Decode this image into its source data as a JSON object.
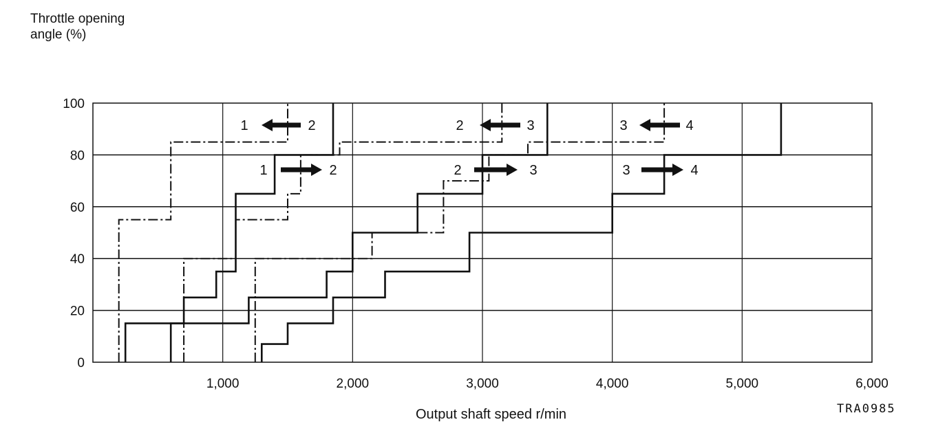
{
  "chart_data": {
    "type": "line",
    "ylabel": "Throttle  opening\nangle (%)",
    "xlabel": "Output shaft speed r/min",
    "figure_code": "TRA0985",
    "xlim": [
      0,
      6000
    ],
    "ylim": [
      0,
      100
    ],
    "x_ticks": [
      {
        "value": 1000,
        "label": "1,000"
      },
      {
        "value": 2000,
        "label": "2,000"
      },
      {
        "value": 3000,
        "label": "3,000"
      },
      {
        "value": 4000,
        "label": "4,000"
      },
      {
        "value": 5000,
        "label": "5,000"
      },
      {
        "value": 6000,
        "label": "6,000"
      }
    ],
    "y_ticks": [
      {
        "value": 0,
        "label": "0"
      },
      {
        "value": 20,
        "label": "20"
      },
      {
        "value": 40,
        "label": "40"
      },
      {
        "value": 60,
        "label": "60"
      },
      {
        "value": 80,
        "label": "80"
      },
      {
        "value": 100,
        "label": "100"
      }
    ],
    "grid": true,
    "series": [
      {
        "style": "solid",
        "points": [
          [
            250,
            0
          ],
          [
            250,
            15
          ],
          [
            700,
            15
          ],
          [
            700,
            25
          ],
          [
            950,
            25
          ],
          [
            950,
            35
          ],
          [
            1100,
            35
          ],
          [
            1100,
            65
          ],
          [
            1400,
            65
          ],
          [
            1400,
            80
          ],
          [
            1850,
            80
          ],
          [
            1850,
            100
          ]
        ]
      },
      {
        "style": "solid",
        "points": [
          [
            600,
            0
          ],
          [
            600,
            15
          ],
          [
            1200,
            15
          ],
          [
            1200,
            25
          ],
          [
            1800,
            25
          ],
          [
            1800,
            35
          ],
          [
            2000,
            35
          ],
          [
            2000,
            50
          ],
          [
            2500,
            50
          ],
          [
            2500,
            65
          ],
          [
            3000,
            65
          ],
          [
            3000,
            80
          ],
          [
            3500,
            80
          ],
          [
            3500,
            100
          ]
        ]
      },
      {
        "style": "solid",
        "points": [
          [
            1300,
            0
          ],
          [
            1300,
            7
          ],
          [
            1500,
            7
          ],
          [
            1500,
            15
          ],
          [
            1850,
            15
          ],
          [
            1850,
            25
          ],
          [
            2250,
            25
          ],
          [
            2250,
            35
          ],
          [
            2900,
            35
          ],
          [
            2900,
            50
          ],
          [
            4000,
            50
          ],
          [
            4000,
            65
          ],
          [
            4400,
            65
          ],
          [
            4400,
            80
          ],
          [
            5300,
            80
          ],
          [
            5300,
            100
          ]
        ]
      },
      {
        "style": "dashed",
        "points": [
          [
            200,
            0
          ],
          [
            200,
            55
          ],
          [
            600,
            55
          ],
          [
            600,
            85
          ],
          [
            1500,
            85
          ],
          [
            1500,
            100
          ]
        ]
      },
      {
        "style": "dashed",
        "points": [
          [
            700,
            0
          ],
          [
            700,
            40
          ],
          [
            1100,
            40
          ],
          [
            1100,
            55
          ],
          [
            1500,
            55
          ],
          [
            1500,
            65
          ],
          [
            1600,
            65
          ],
          [
            1600,
            80
          ],
          [
            1900,
            80
          ],
          [
            1900,
            85
          ],
          [
            3150,
            85
          ],
          [
            3150,
            100
          ]
        ]
      },
      {
        "style": "dashed",
        "points": [
          [
            1250,
            0
          ],
          [
            1250,
            40
          ],
          [
            2150,
            40
          ],
          [
            2150,
            50
          ],
          [
            2700,
            50
          ],
          [
            2700,
            70
          ],
          [
            3050,
            70
          ],
          [
            3050,
            80
          ],
          [
            3350,
            80
          ],
          [
            3350,
            85
          ],
          [
            4400,
            85
          ],
          [
            4400,
            100
          ]
        ]
      }
    ],
    "annotations": [
      {
        "kind": "downshift",
        "from": "1",
        "to": "2"
      },
      {
        "kind": "downshift",
        "from": "2",
        "to": "3"
      },
      {
        "kind": "downshift",
        "from": "3",
        "to": "4"
      },
      {
        "kind": "upshift",
        "from": "1",
        "to": "2"
      },
      {
        "kind": "upshift",
        "from": "2",
        "to": "3"
      },
      {
        "kind": "upshift",
        "from": "3",
        "to": "4"
      }
    ]
  }
}
